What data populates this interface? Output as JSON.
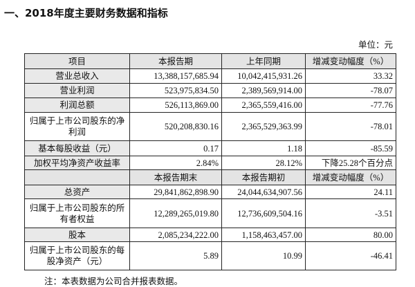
{
  "title": "一、2018年度主要财务数据和指标",
  "unit": "单位：元",
  "header1": [
    "项目",
    "本报告期",
    "上年同期",
    "增减变动幅度（%）"
  ],
  "rows1": [
    {
      "label": "营业总收入",
      "v1": "13,388,157,685.94",
      "v2": "10,042,415,931.26",
      "v3": "33.32",
      "gray": true,
      "h": 21
    },
    {
      "label": "营业利润",
      "v1": "523,975,834.50",
      "v2": "2,389,569,914.00",
      "v3": "-78.07",
      "gray": true,
      "h": 21
    },
    {
      "label": "利润总额",
      "v1": "526,113,869.00",
      "v2": "2,365,559,416.00",
      "v3": "-77.76",
      "gray": true,
      "h": 21
    },
    {
      "label": "归属于上市公司股东的净利润",
      "v1": "520,208,830.16",
      "v2": "2,365,529,363.99",
      "v3": "-78.01",
      "gray": false,
      "h": 41
    },
    {
      "label": "基本每股收益（元）",
      "v1": "0.17",
      "v2": "1.18",
      "v3": "-85.59",
      "gray": true,
      "h": 22
    },
    {
      "label": "加权平均净资产收益率",
      "v1": "2.84%",
      "v2": "28.12%",
      "v3": "下降25.28个百分点",
      "gray": true,
      "h": 20
    }
  ],
  "header2": [
    "",
    "本报告期末",
    "本报告期初",
    "增减变动幅度（%）"
  ],
  "rows2": [
    {
      "label": "总资产",
      "v1": "29,841,862,898.90",
      "v2": "24,044,634,907.56",
      "v3": "24.11",
      "gray": true,
      "h": 20
    },
    {
      "label": "归属于上市公司股东的所有者权益",
      "v1": "12,289,265,019.80",
      "v2": "12,736,609,504.16",
      "v3": "-3.51",
      "gray": false,
      "h": 42
    },
    {
      "label": "股本",
      "v1": "2,085,234,222.00",
      "v2": "1,158,463,457.00",
      "v3": "80.00",
      "gray": true,
      "h": 20
    },
    {
      "label": "归属于上市公司股东的每股净资产（元）",
      "v1": "5.89",
      "v2": "10.99",
      "v3": "-46.41",
      "gray": false,
      "h": 41
    }
  ],
  "note": "注：本表数据为公司合并报表数据。"
}
